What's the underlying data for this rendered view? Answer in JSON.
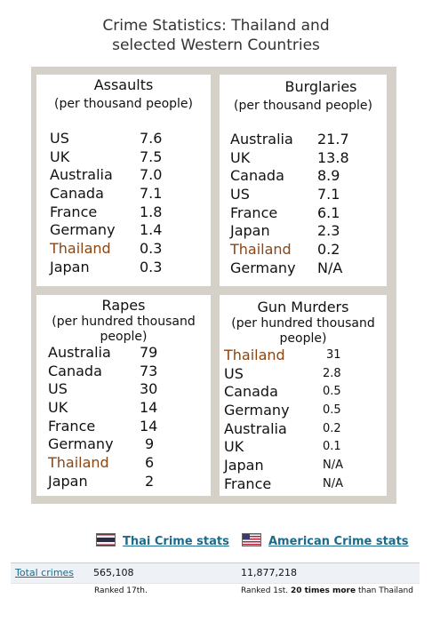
{
  "title": {
    "line1": "Crime Statistics: Thailand and",
    "line2": "selected Western Countries"
  },
  "panels": [
    {
      "title": "Assaults",
      "subtitle": [
        "(per thousand people)"
      ],
      "rows": [
        {
          "country": "US",
          "value": "7.6"
        },
        {
          "country": "UK",
          "value": "7.5"
        },
        {
          "country": "Australia",
          "value": "7.0"
        },
        {
          "country": "Canada",
          "value": "7.1"
        },
        {
          "country": "France",
          "value": "1.8"
        },
        {
          "country": "Germany",
          "value": "1.4"
        },
        {
          "country": "Thailand",
          "value": "0.3",
          "highlight": true
        },
        {
          "country": "Japan",
          "value": "0.3"
        }
      ]
    },
    {
      "title": "Burglaries",
      "subtitle": [
        "(per thousand people)"
      ],
      "rows": [
        {
          "country": "Australia",
          "value": "21.7"
        },
        {
          "country": "UK",
          "value": "13.8"
        },
        {
          "country": "Canada",
          "value": "8.9"
        },
        {
          "country": "US",
          "value": "7.1"
        },
        {
          "country": "France",
          "value": "6.1"
        },
        {
          "country": "Japan",
          "value": "2.3"
        },
        {
          "country": "Thailand",
          "value": "0.2",
          "highlight": true
        },
        {
          "country": "Germany",
          "value": "N/A"
        }
      ]
    },
    {
      "title": "Rapes",
      "subtitle": [
        "(per hundred thousand",
        "people)"
      ],
      "rows": [
        {
          "country": "Australia",
          "value": "79"
        },
        {
          "country": "Canada",
          "value": "73"
        },
        {
          "country": "US",
          "value": "30"
        },
        {
          "country": "UK",
          "value": "14"
        },
        {
          "country": "France",
          "value": "14"
        },
        {
          "country": "Germany",
          "value": "9"
        },
        {
          "country": "Thailand",
          "value": "6",
          "highlight": true
        },
        {
          "country": "Japan",
          "value": "2"
        }
      ]
    },
    {
      "title": "Gun Murders",
      "subtitle": [
        "(per hundred thousand",
        "people)"
      ],
      "rows": [
        {
          "country": "Thailand",
          "value": "31",
          "highlight": true
        },
        {
          "country": "US",
          "value": "2.8"
        },
        {
          "country": "Canada",
          "value": "0.5"
        },
        {
          "country": "Germany",
          "value": "0.5"
        },
        {
          "country": "Australia",
          "value": "0.2"
        },
        {
          "country": "UK",
          "value": "0.1"
        },
        {
          "country": "Japan",
          "value": "N/A"
        },
        {
          "country": "France",
          "value": "N/A"
        }
      ]
    }
  ],
  "legend": {
    "thai_label": "Thai Crime stats",
    "us_label": "American Crime stats"
  },
  "stats": {
    "label": "Total crimes",
    "thai_total": "565,108",
    "us_total": "11,877,218",
    "thai_rank": "Ranked 17th.",
    "us_rank_prefix": "Ranked 1st. ",
    "us_rank_bold": "20 times more",
    "us_rank_suffix": " than Thailand"
  },
  "colors": {
    "highlight": "#8b4513",
    "link": "#1e6a8a",
    "frame": "#d6d1c8"
  }
}
